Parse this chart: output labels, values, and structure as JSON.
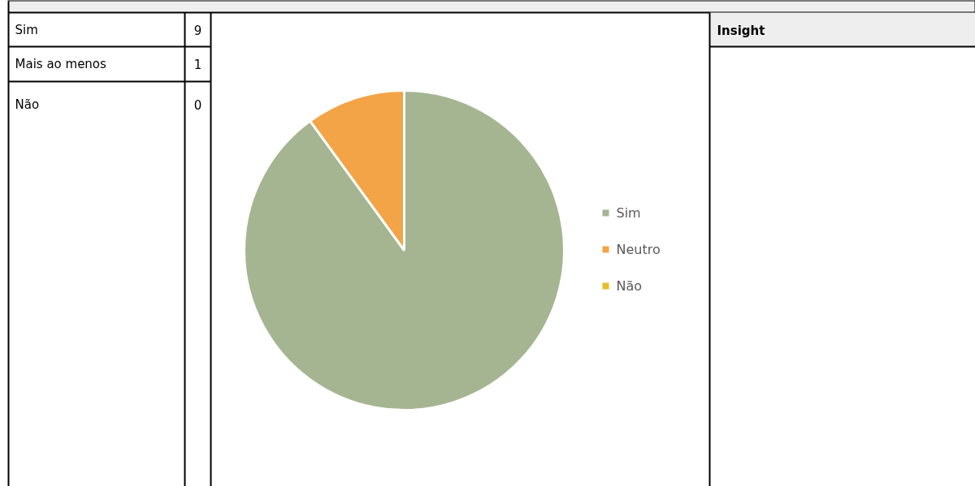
{
  "chart_data": {
    "type": "pie",
    "categories": [
      "Sim",
      "Neutro",
      "Não"
    ],
    "values": [
      90,
      10,
      0
    ],
    "colors": [
      "#a5b592",
      "#f3a447",
      "#e7bc29"
    ],
    "legend": "right",
    "annotations": [
      "Sim",
      "9",
      "Mais ao menos",
      "1",
      "Não",
      "0",
      "Insight"
    ]
  }
}
